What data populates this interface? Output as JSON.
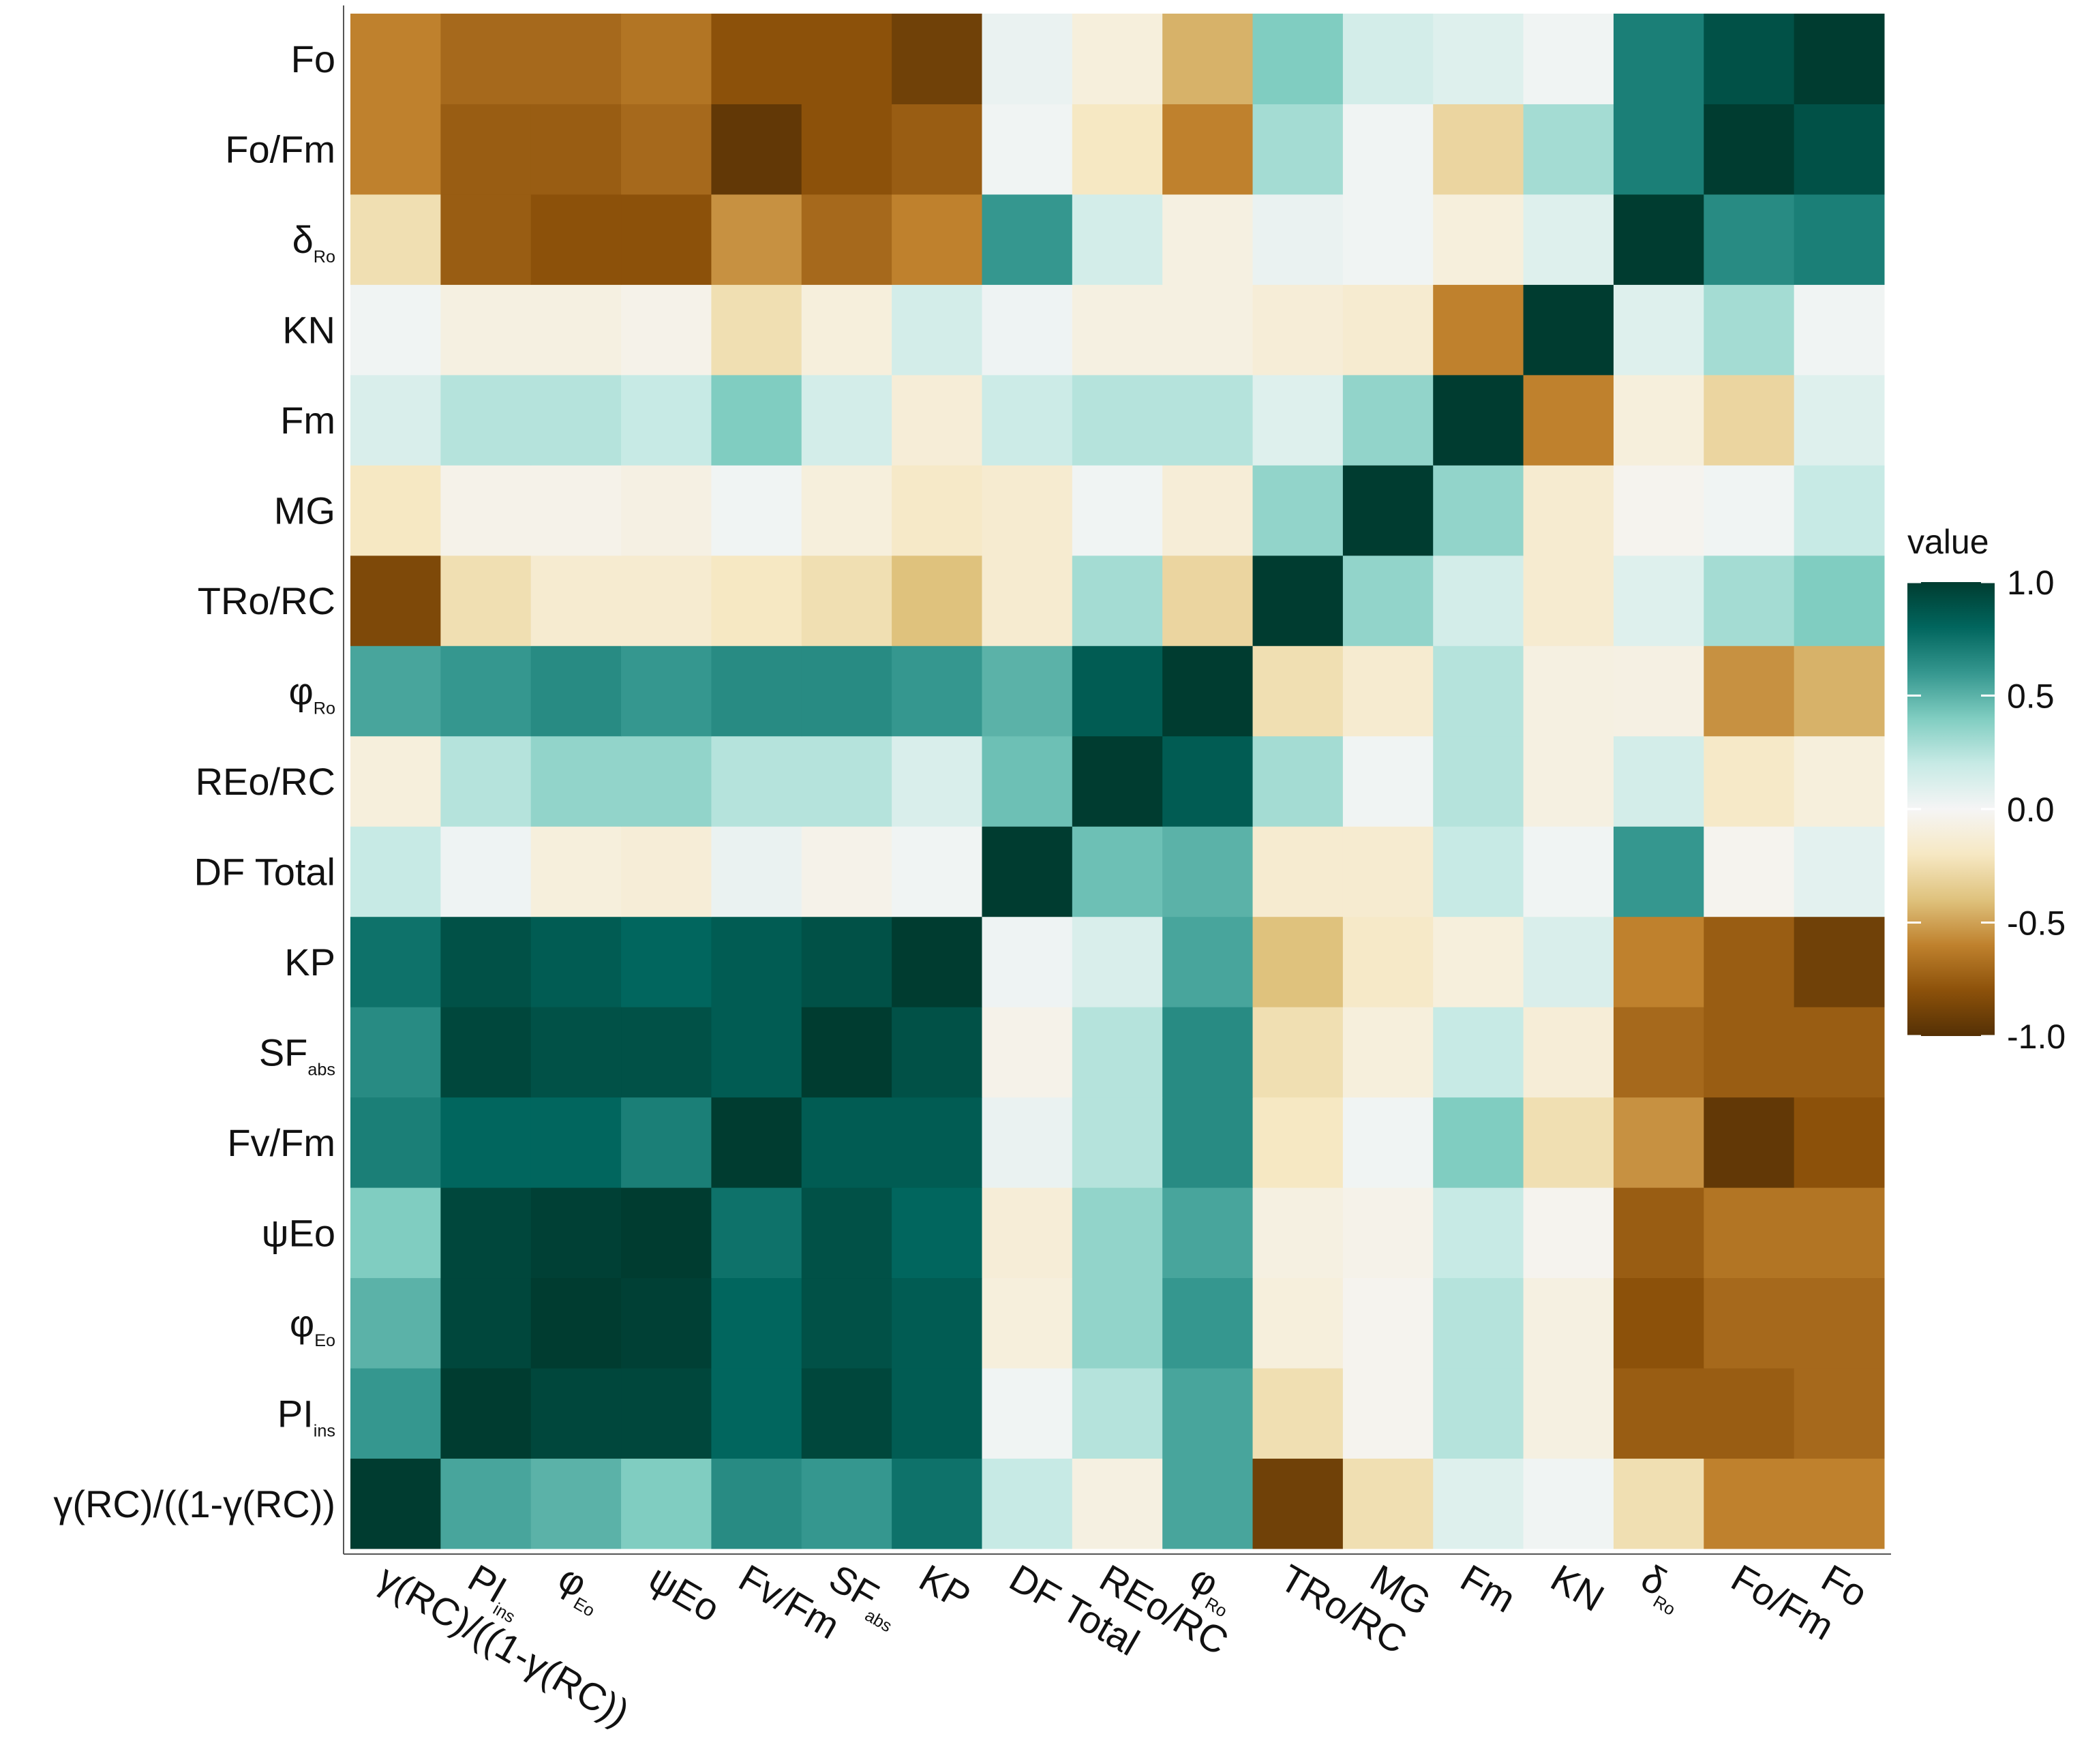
{
  "chart_data": {
    "type": "heatmap",
    "categories": [
      {
        "text": "γ(RC)/((1-γ(RC))"
      },
      {
        "text": "PI",
        "sub": "ins"
      },
      {
        "text": "φ",
        "sub": "Eo"
      },
      {
        "text": "ψEo"
      },
      {
        "text": "Fv/Fm"
      },
      {
        "text": "SF",
        "sub": "abs"
      },
      {
        "text": "KP"
      },
      {
        "text": "DF Total"
      },
      {
        "text": "REo/RC"
      },
      {
        "text": "φ",
        "sub": "Ro"
      },
      {
        "text": "TRo/RC"
      },
      {
        "text": "MG"
      },
      {
        "text": "Fm"
      },
      {
        "text": "KN"
      },
      {
        "text": "δ",
        "sub": "Ro"
      },
      {
        "text": "Fo/Fm"
      },
      {
        "text": "Fo"
      }
    ],
    "values": [
      [
        1,
        0.55,
        0.5,
        0.4,
        0.65,
        0.6,
        0.75,
        0.2,
        -0.08,
        0.55,
        -0.9,
        -0.25,
        0.1,
        0.02,
        -0.25,
        -0.6,
        -0.6
      ],
      [
        0.6,
        1,
        0.95,
        0.95,
        0.8,
        0.95,
        0.85,
        0.02,
        0.25,
        0.55,
        -0.25,
        -0.03,
        0.25,
        -0.08,
        -0.75,
        -0.75,
        -0.7
      ],
      [
        0.5,
        0.95,
        1,
        0.98,
        0.8,
        0.9,
        0.85,
        -0.1,
        0.35,
        0.6,
        -0.1,
        -0.03,
        0.25,
        -0.08,
        -0.8,
        -0.7,
        -0.7
      ],
      [
        0.4,
        0.95,
        0.98,
        1,
        0.75,
        0.9,
        0.8,
        -0.12,
        0.35,
        0.55,
        -0.08,
        -0.05,
        0.2,
        -0.03,
        -0.75,
        -0.65,
        -0.65
      ],
      [
        0.7,
        0.8,
        0.8,
        0.7,
        1,
        0.85,
        0.85,
        0.05,
        0.25,
        0.65,
        -0.2,
        0.02,
        0.4,
        -0.25,
        -0.55,
        -0.95,
        -0.8
      ],
      [
        0.65,
        0.95,
        0.9,
        0.9,
        0.85,
        1,
        0.9,
        -0.05,
        0.25,
        0.65,
        -0.25,
        -0.1,
        0.2,
        -0.12,
        -0.7,
        -0.75,
        -0.75
      ],
      [
        0.75,
        0.9,
        0.85,
        0.8,
        0.85,
        0.9,
        1,
        0.03,
        0.12,
        0.55,
        -0.4,
        -0.18,
        -0.1,
        0.12,
        -0.6,
        -0.75,
        -0.9
      ],
      [
        0.2,
        0.03,
        -0.1,
        -0.12,
        0.05,
        -0.05,
        0.02,
        1,
        0.45,
        0.5,
        -0.15,
        -0.15,
        0.2,
        0.02,
        0.6,
        -0.03,
        0.08
      ],
      [
        -0.1,
        0.25,
        0.35,
        0.35,
        0.25,
        0.25,
        0.12,
        0.45,
        1,
        0.85,
        0.3,
        0.02,
        0.25,
        -0.08,
        0.15,
        -0.18,
        -0.1
      ],
      [
        0.55,
        0.6,
        0.65,
        0.6,
        0.65,
        0.65,
        0.6,
        0.5,
        0.85,
        1,
        -0.25,
        -0.15,
        0.25,
        -0.08,
        -0.07,
        -0.55,
        -0.45
      ],
      [
        -0.85,
        -0.25,
        -0.15,
        -0.15,
        -0.2,
        -0.25,
        -0.4,
        -0.15,
        0.3,
        -0.3,
        1,
        0.35,
        0.15,
        -0.15,
        0.1,
        0.3,
        0.4
      ],
      [
        -0.2,
        -0.05,
        -0.05,
        -0.07,
        0.02,
        -0.1,
        -0.18,
        -0.15,
        0.02,
        -0.12,
        0.35,
        1,
        0.35,
        -0.15,
        -0.03,
        0.02,
        0.2
      ],
      [
        0.12,
        0.25,
        0.25,
        0.2,
        0.4,
        0.15,
        -0.12,
        0.18,
        0.25,
        0.25,
        0.1,
        0.35,
        1,
        -0.6,
        -0.1,
        -0.3,
        0.1
      ],
      [
        0.02,
        -0.08,
        -0.08,
        -0.05,
        -0.25,
        -0.1,
        0.15,
        0.03,
        -0.08,
        -0.08,
        -0.12,
        -0.15,
        -0.6,
        1,
        0.1,
        0.3,
        0.02
      ],
      [
        -0.25,
        -0.75,
        -0.8,
        -0.8,
        -0.55,
        -0.7,
        -0.6,
        0.6,
        0.15,
        -0.08,
        0.05,
        0.02,
        -0.1,
        0.1,
        1,
        0.65,
        0.7
      ],
      [
        -0.6,
        -0.75,
        -0.75,
        -0.7,
        -0.95,
        -0.8,
        -0.75,
        0.02,
        -0.2,
        -0.6,
        0.3,
        0.02,
        -0.3,
        0.3,
        0.7,
        1,
        0.9
      ],
      [
        -0.6,
        -0.7,
        -0.7,
        -0.65,
        -0.8,
        -0.8,
        -0.9,
        0.05,
        -0.1,
        -0.45,
        0.4,
        0.15,
        0.1,
        0.02,
        0.7,
        0.9,
        1
      ]
    ],
    "legend_title": "value",
    "clim": [
      -1,
      1
    ],
    "cticks": [
      {
        "value": -1,
        "label": "-1.0"
      },
      -0.5,
      {
        "value": 0,
        "label": "0.0"
      },
      0.5,
      {
        "value": 1,
        "label": "1.0"
      }
    ],
    "colors": [
      "#543005",
      "#8c510a",
      "#bf812d",
      "#dfc27d",
      "#f6e8c3",
      "#f5f5f5",
      "#c7eae5",
      "#80cdc1",
      "#35978f",
      "#01665e",
      "#003c30"
    ]
  }
}
